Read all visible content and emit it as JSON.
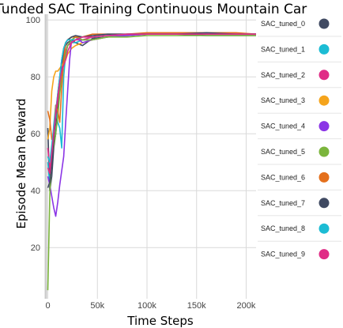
{
  "chart_data": {
    "type": "line",
    "title": "Tunded SAC Training Continuous Mountain Car",
    "xlabel": "Time Steps",
    "ylabel": "Episode Mean Reward",
    "xlim": [
      -2000,
      210000
    ],
    "ylim": [
      2,
      102
    ],
    "x_ticks": [
      0,
      50000,
      100000,
      150000,
      200000
    ],
    "x_tick_labels": [
      "0",
      "50k",
      "100k",
      "150k",
      "200k"
    ],
    "y_ticks": [
      20,
      40,
      60,
      80,
      100
    ],
    "y_tick_labels": [
      "20",
      "40",
      "60",
      "80",
      "100"
    ],
    "grid": true,
    "legend_position": "right",
    "series": [
      {
        "name": "SAC_tuned_0",
        "color": "#404a62",
        "x": [
          0,
          2000,
          4000,
          6000,
          8000,
          10000,
          12000,
          14000,
          16000,
          18000,
          20000,
          24000,
          28000,
          35000,
          45000,
          60000,
          80000,
          100000,
          130000,
          160000,
          190000,
          210000
        ],
        "y": [
          62,
          40,
          45,
          55,
          60,
          70,
          75,
          83,
          88,
          91,
          92,
          93,
          92,
          91,
          93.5,
          94,
          94.5,
          95,
          95,
          94.5,
          94.5,
          94.5
        ]
      },
      {
        "name": "SAC_tuned_1",
        "color": "#1cbcd4",
        "x": [
          0,
          2000,
          4000,
          6000,
          8000,
          10000,
          12000,
          14000,
          16000,
          18000,
          20000,
          24000,
          28000,
          35000,
          45000,
          60000,
          80000,
          100000,
          130000,
          160000,
          190000,
          210000
        ],
        "y": [
          50,
          42,
          55,
          63,
          70,
          64,
          62,
          55,
          80,
          88,
          91,
          92,
          92,
          93,
          93,
          94,
          94.5,
          95,
          95,
          95,
          95,
          95
        ]
      },
      {
        "name": "SAC_tuned_2",
        "color": "#e02c86",
        "x": [
          0,
          2000,
          4000,
          6000,
          8000,
          10000,
          12000,
          14000,
          16000,
          18000,
          20000,
          24000,
          28000,
          35000,
          45000,
          60000,
          80000,
          100000,
          130000,
          160000,
          190000,
          210000
        ],
        "y": [
          55,
          48,
          52,
          60,
          66,
          72,
          78,
          82,
          86,
          89,
          91,
          92,
          93,
          93,
          94,
          94.5,
          95,
          95,
          95,
          95,
          95,
          95
        ]
      },
      {
        "name": "SAC_tuned_3",
        "color": "#f5a41c",
        "x": [
          0,
          2000,
          4000,
          6000,
          8000,
          10000,
          12000,
          14000,
          16000,
          18000,
          20000,
          24000,
          28000,
          35000,
          45000,
          60000,
          80000,
          100000,
          130000,
          160000,
          190000,
          210000
        ],
        "y": [
          58,
          62,
          75,
          80,
          82,
          82,
          83,
          84,
          85,
          86,
          88,
          90,
          91,
          92,
          93,
          94,
          94.5,
          95,
          95,
          95,
          95,
          95
        ]
      },
      {
        "name": "SAC_tuned_4",
        "color": "#8b35e6",
        "x": [
          0,
          2000,
          4000,
          6000,
          8000,
          10000,
          12000,
          14000,
          16000,
          18000,
          20000,
          22000,
          24000,
          28000,
          35000,
          45000,
          60000,
          80000,
          100000,
          130000,
          160000,
          190000,
          210000
        ],
        "y": [
          45,
          42,
          38,
          34,
          31,
          36,
          42,
          47,
          52,
          64,
          75,
          86,
          93,
          94,
          92,
          93,
          94,
          94.5,
          95,
          95,
          95,
          95,
          95
        ]
      },
      {
        "name": "SAC_tuned_5",
        "color": "#7bb53c",
        "x": [
          0,
          1000,
          2000,
          3000,
          4000,
          6000,
          8000,
          10000,
          12000,
          14000,
          16000,
          18000,
          20000,
          24000,
          28000,
          35000,
          45000,
          60000,
          80000,
          100000,
          130000,
          160000,
          190000,
          210000
        ],
        "y": [
          5,
          22,
          38,
          48,
          52,
          56,
          60,
          66,
          74,
          80,
          85,
          88,
          91,
          93,
          94,
          93,
          93,
          94,
          94,
          94.5,
          94.5,
          94.5,
          94.5,
          94.5
        ]
      },
      {
        "name": "SAC_tuned_6",
        "color": "#e4701c",
        "x": [
          0,
          2000,
          4000,
          6000,
          8000,
          10000,
          12000,
          14000,
          16000,
          18000,
          20000,
          24000,
          28000,
          35000,
          45000,
          60000,
          80000,
          100000,
          130000,
          160000,
          190000,
          210000
        ],
        "y": [
          68,
          65,
          58,
          60,
          70,
          68,
          64,
          76,
          86,
          92,
          93,
          94,
          94,
          94,
          95,
          95,
          95,
          95.5,
          95.5,
          95.5,
          95.5,
          95
        ]
      },
      {
        "name": "SAC_tuned_7",
        "color": "#404a62",
        "x": [
          0,
          2000,
          4000,
          6000,
          8000,
          10000,
          12000,
          14000,
          16000,
          18000,
          20000,
          24000,
          28000,
          35000,
          45000,
          60000,
          80000,
          100000,
          130000,
          160000,
          190000,
          210000
        ],
        "y": [
          41,
          43,
          50,
          58,
          66,
          74,
          80,
          86,
          90,
          92,
          93,
          94,
          94.5,
          94,
          94.5,
          95,
          95,
          95,
          95,
          95.5,
          95,
          95
        ]
      },
      {
        "name": "SAC_tuned_8",
        "color": "#1cbcd4",
        "x": [
          0,
          2000,
          4000,
          6000,
          8000,
          10000,
          12000,
          14000,
          16000,
          18000,
          20000,
          24000,
          28000,
          35000,
          45000,
          60000,
          80000,
          100000,
          130000,
          160000,
          190000,
          210000
        ],
        "y": [
          52,
          50,
          56,
          62,
          68,
          74,
          80,
          86,
          90,
          92,
          93,
          93,
          93,
          94,
          94,
          94.5,
          95,
          95,
          95,
          95,
          95,
          95
        ]
      },
      {
        "name": "SAC_tuned_9",
        "color": "#e02c86",
        "x": [
          0,
          2000,
          4000,
          6000,
          8000,
          10000,
          12000,
          14000,
          16000,
          18000,
          20000,
          24000,
          28000,
          35000,
          45000,
          60000,
          80000,
          100000,
          130000,
          160000,
          190000,
          210000
        ],
        "y": [
          48,
          46,
          53,
          60,
          67,
          73,
          78,
          82,
          84,
          86,
          89,
          92,
          93,
          94,
          94,
          94.5,
          95,
          95,
          95,
          95,
          95,
          95
        ]
      }
    ]
  }
}
